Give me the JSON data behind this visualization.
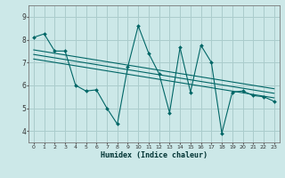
{
  "title": "",
  "xlabel": "Humidex (Indice chaleur)",
  "bg_color": "#cce8e8",
  "grid_color": "#aacccc",
  "line_color": "#006666",
  "xlim": [
    -0.5,
    23.5
  ],
  "ylim": [
    3.5,
    9.5
  ],
  "xticks": [
    0,
    1,
    2,
    3,
    4,
    5,
    6,
    7,
    8,
    9,
    10,
    11,
    12,
    13,
    14,
    15,
    16,
    17,
    18,
    19,
    20,
    21,
    22,
    23
  ],
  "yticks": [
    4,
    5,
    6,
    7,
    8,
    9
  ],
  "main_data_x": [
    0,
    1,
    2,
    3,
    4,
    5,
    6,
    7,
    8,
    9,
    10,
    11,
    12,
    13,
    14,
    15,
    16,
    17,
    18,
    19,
    20,
    21,
    22,
    23
  ],
  "main_data_y": [
    8.1,
    8.25,
    7.5,
    7.5,
    6.0,
    5.75,
    5.8,
    5.0,
    4.3,
    6.8,
    8.6,
    7.4,
    6.5,
    4.8,
    7.65,
    5.7,
    7.75,
    7.0,
    3.9,
    5.7,
    5.75,
    5.55,
    5.5,
    5.3
  ],
  "trend1_x": [
    0,
    23
  ],
  "trend1_y": [
    7.55,
    5.85
  ],
  "trend2_x": [
    0,
    23
  ],
  "trend2_y": [
    7.35,
    5.65
  ],
  "trend3_x": [
    0,
    23
  ],
  "trend3_y": [
    7.15,
    5.45
  ]
}
